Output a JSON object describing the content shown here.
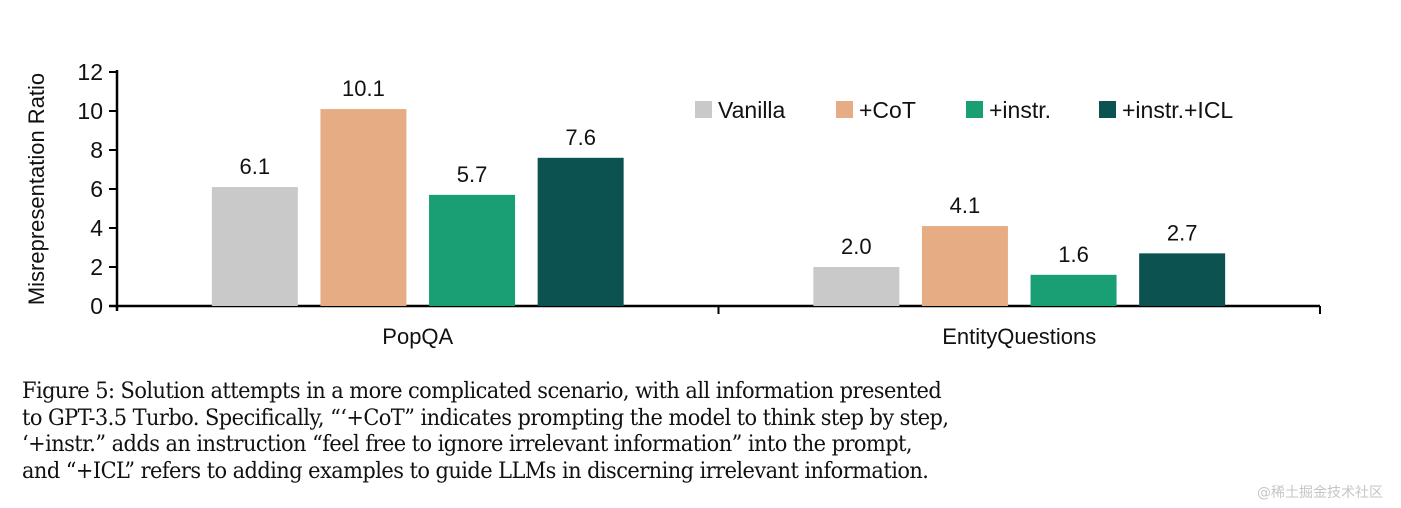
{
  "chart_data": {
    "type": "bar",
    "title": "",
    "xlabel": "",
    "ylabel": "Misrepresentation Ratio",
    "ylim": [
      0,
      12
    ],
    "yticks": [
      0,
      2,
      4,
      6,
      8,
      10,
      12
    ],
    "categories": [
      "PopQA",
      "EntityQuestions"
    ],
    "legend_position": "top-right",
    "grid": false,
    "series": [
      {
        "name": "Vanilla",
        "color": "#c9c9c9",
        "values": [
          6.1,
          2.0
        ],
        "labels": [
          "6.1",
          "2.0"
        ]
      },
      {
        "name": "+CoT",
        "color": "#e6ad84",
        "values": [
          10.1,
          4.1
        ],
        "labels": [
          "10.1",
          "4.1"
        ]
      },
      {
        "name": "+instr.",
        "color": "#1a9e74",
        "values": [
          5.7,
          1.6
        ],
        "labels": [
          "5.7",
          "1.6"
        ]
      },
      {
        "name": "+instr.+ICL",
        "color": "#0b5250",
        "values": [
          7.6,
          2.7
        ],
        "labels": [
          "7.6",
          "2.7"
        ]
      }
    ]
  },
  "caption": {
    "lines": [
      "Figure 5: Solution attempts in a more complicated scenario, with all information presented",
      "to GPT-3.5 Turbo. Specifically, “‘+CoT” indicates prompting the model to think step by step,",
      "‘+instr.” adds an instruction “feel free to ignore irrelevant information” into the prompt,",
      "and “+ICL” refers to adding examples to guide LLMs in discerning irrelevant information."
    ]
  },
  "watermark": "@稀土掘金技术社区"
}
